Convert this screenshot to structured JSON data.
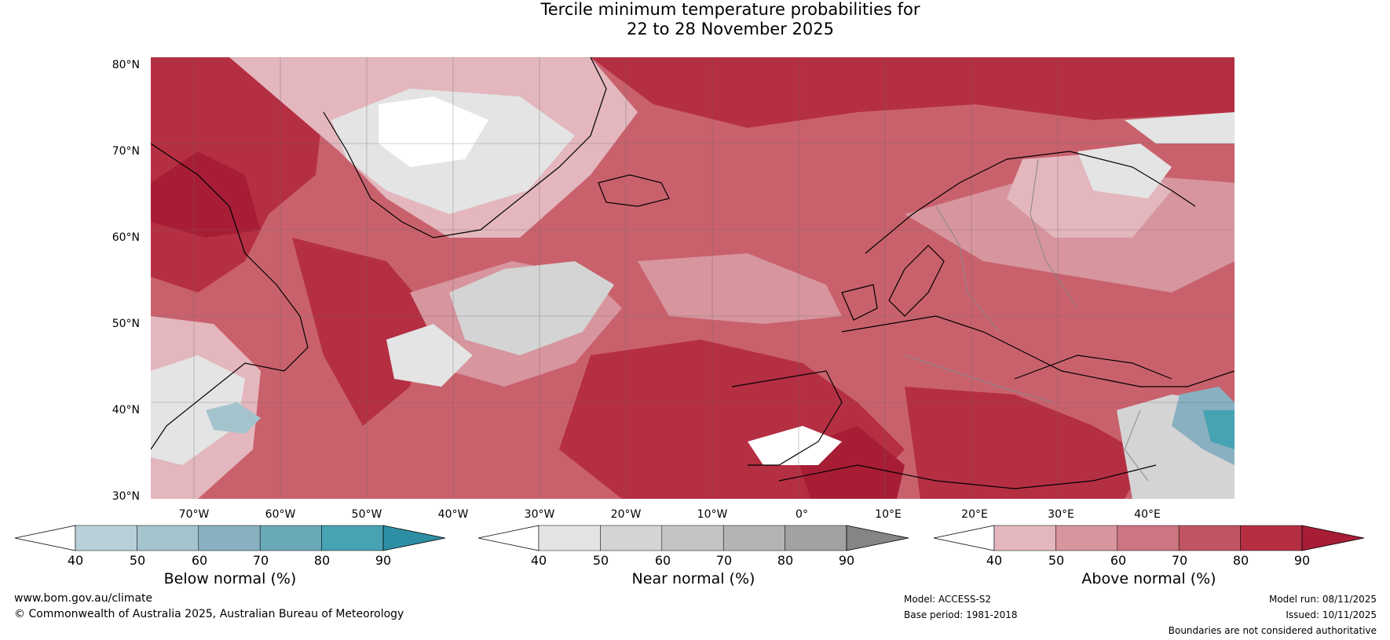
{
  "title": {
    "line1": "Tercile minimum temperature probabilities for",
    "line2": "22 to 28 November 2025"
  },
  "map": {
    "lat_labels": [
      "80°N",
      "70°N",
      "60°N",
      "50°N",
      "40°N",
      "30°N"
    ],
    "lon_labels": [
      "70°W",
      "60°W",
      "50°W",
      "40°W",
      "30°W",
      "20°W",
      "10°W",
      "0°",
      "10°E",
      "20°E",
      "30°E",
      "40°E"
    ]
  },
  "colorbars": [
    {
      "name": "below",
      "label": "Below normal (%)",
      "ticks": [
        "40",
        "50",
        "60",
        "70",
        "80",
        "90"
      ],
      "colors": [
        "#ffffff",
        "#b9d0d8",
        "#a4c4cd",
        "#88b0c0",
        "#6aaab8",
        "#47a2b3",
        "#2e8fa4"
      ]
    },
    {
      "name": "near",
      "label": "Near normal (%)",
      "ticks": [
        "40",
        "50",
        "60",
        "70",
        "80",
        "90"
      ],
      "colors": [
        "#ffffff",
        "#e4e4e4",
        "#d4d4d4",
        "#c4c4c4",
        "#b4b4b4",
        "#a2a2a2",
        "#858585"
      ]
    },
    {
      "name": "above",
      "label": "Above normal (%)",
      "ticks": [
        "40",
        "50",
        "60",
        "70",
        "80",
        "90"
      ],
      "colors": [
        "#ffffff",
        "#e3b7bd",
        "#d7959e",
        "#cb7680",
        "#c15563",
        "#b52f43",
        "#a81d36"
      ]
    }
  ],
  "footer": {
    "website": "www.bom.gov.au/climate",
    "copyright": "© Commonwealth of Australia 2025, Australian Bureau of Meteorology",
    "model": "Model: ACCESS-S2",
    "base_period": "Base period: 1981-2018",
    "model_run": "Model run: 08/11/2025",
    "issued": "Issued: 10/11/2025",
    "disclaimer": "Boundaries are not considered authoritative"
  }
}
